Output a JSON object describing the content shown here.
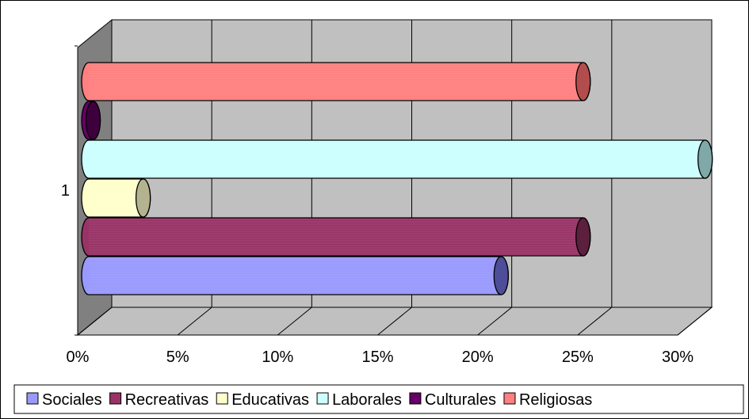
{
  "chart_data": {
    "type": "bar",
    "orientation": "horizontal",
    "style": "3d-cylinder",
    "categories": [
      "1"
    ],
    "xlim": [
      0,
      30
    ],
    "xticks": [
      "0%",
      "5%",
      "10%",
      "15%",
      "20%",
      "25%",
      "30%"
    ],
    "grid": true,
    "legend_position": "bottom",
    "series": [
      {
        "name": "Sociales",
        "values": [
          20.5
        ],
        "color": "#9999FF",
        "dark": "#4D4D99"
      },
      {
        "name": "Recreativas",
        "values": [
          24.6
        ],
        "color": "#993366",
        "dark": "#5C1F3D"
      },
      {
        "name": "Educativas",
        "values": [
          2.6
        ],
        "color": "#FFFFCC",
        "dark": "#B3B38F"
      },
      {
        "name": "Laborales",
        "values": [
          30.7
        ],
        "color": "#CCFFFF",
        "dark": "#7FA8A8"
      },
      {
        "name": "Culturales",
        "values": [
          0.1
        ],
        "color": "#660066",
        "dark": "#3D003D"
      },
      {
        "name": "Religiosas",
        "values": [
          24.6
        ],
        "color": "#FF8080",
        "dark": "#B34D4D"
      }
    ]
  }
}
